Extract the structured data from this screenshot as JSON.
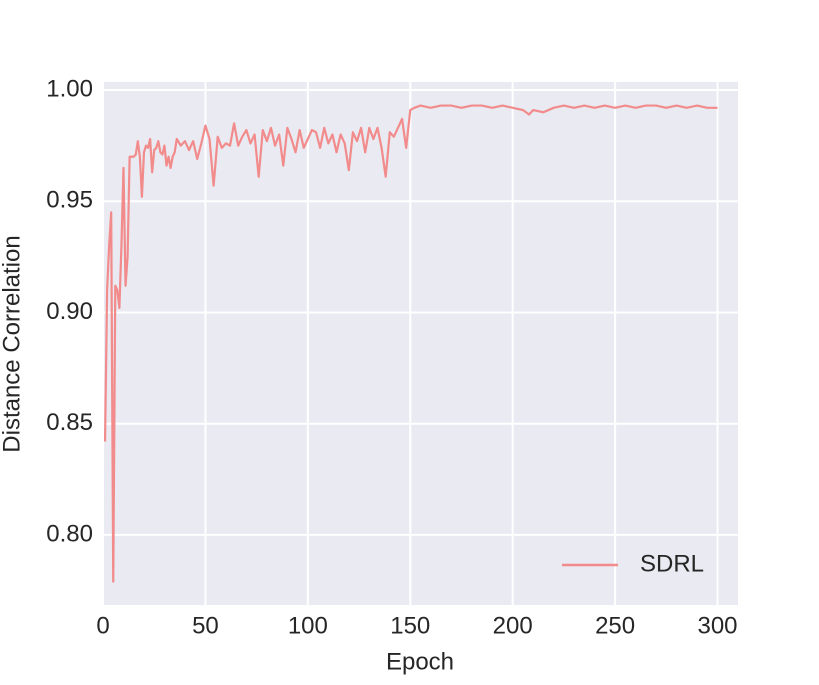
{
  "chart_data": {
    "type": "line",
    "xlabel": "Epoch",
    "ylabel": "Distance Correlation",
    "x": [
      1,
      2,
      3,
      4,
      5,
      6,
      7,
      8,
      9,
      10,
      11,
      12,
      13,
      14,
      15,
      16,
      17,
      18,
      19,
      20,
      21,
      22,
      23,
      24,
      25,
      26,
      27,
      28,
      29,
      30,
      31,
      32,
      33,
      34,
      35,
      36,
      38,
      40,
      42,
      44,
      46,
      48,
      50,
      52,
      54,
      56,
      58,
      60,
      62,
      64,
      66,
      68,
      70,
      72,
      74,
      76,
      78,
      80,
      82,
      84,
      86,
      88,
      90,
      92,
      94,
      96,
      98,
      100,
      102,
      104,
      106,
      108,
      110,
      112,
      114,
      116,
      118,
      120,
      122,
      124,
      126,
      128,
      130,
      132,
      134,
      136,
      138,
      140,
      142,
      144,
      146,
      148,
      150,
      152,
      155,
      160,
      165,
      170,
      175,
      180,
      185,
      190,
      195,
      200,
      205,
      208,
      210,
      215,
      220,
      225,
      230,
      235,
      240,
      245,
      250,
      255,
      260,
      265,
      270,
      275,
      280,
      285,
      290,
      295,
      300
    ],
    "series": [
      {
        "name": "SDRL",
        "color": "#f28b8b",
        "values": [
          0.842,
          0.91,
          0.93,
          0.945,
          0.779,
          0.912,
          0.91,
          0.902,
          0.93,
          0.965,
          0.912,
          0.925,
          0.97,
          0.97,
          0.97,
          0.971,
          0.977,
          0.97,
          0.952,
          0.972,
          0.975,
          0.974,
          0.978,
          0.963,
          0.973,
          0.974,
          0.977,
          0.972,
          0.971,
          0.975,
          0.966,
          0.97,
          0.965,
          0.97,
          0.972,
          0.978,
          0.975,
          0.977,
          0.973,
          0.977,
          0.969,
          0.976,
          0.984,
          0.978,
          0.957,
          0.979,
          0.974,
          0.976,
          0.975,
          0.985,
          0.975,
          0.979,
          0.982,
          0.976,
          0.98,
          0.961,
          0.982,
          0.977,
          0.983,
          0.975,
          0.98,
          0.966,
          0.983,
          0.978,
          0.972,
          0.982,
          0.974,
          0.978,
          0.982,
          0.981,
          0.974,
          0.983,
          0.976,
          0.98,
          0.972,
          0.98,
          0.976,
          0.964,
          0.981,
          0.977,
          0.983,
          0.972,
          0.983,
          0.978,
          0.983,
          0.974,
          0.961,
          0.981,
          0.979,
          0.983,
          0.987,
          0.974,
          0.991,
          0.992,
          0.993,
          0.992,
          0.993,
          0.993,
          0.992,
          0.993,
          0.993,
          0.992,
          0.993,
          0.992,
          0.991,
          0.989,
          0.991,
          0.99,
          0.992,
          0.993,
          0.992,
          0.993,
          0.992,
          0.993,
          0.992,
          0.993,
          0.992,
          0.993,
          0.993,
          0.992,
          0.993,
          0.992,
          0.993,
          0.992,
          0.992
        ]
      }
    ],
    "xlim": [
      0,
      310
    ],
    "ylim": [
      0.7685,
      1.0036
    ],
    "xticks": [
      0,
      50,
      100,
      150,
      200,
      250,
      300
    ],
    "yticks": [
      {
        "value": 0.8,
        "label": "0.80"
      },
      0.85,
      {
        "value": 0.9,
        "label": "0.90"
      },
      0.95,
      {
        "value": 1.0,
        "label": "1.00"
      }
    ],
    "grid": true,
    "legend": "lower right"
  }
}
